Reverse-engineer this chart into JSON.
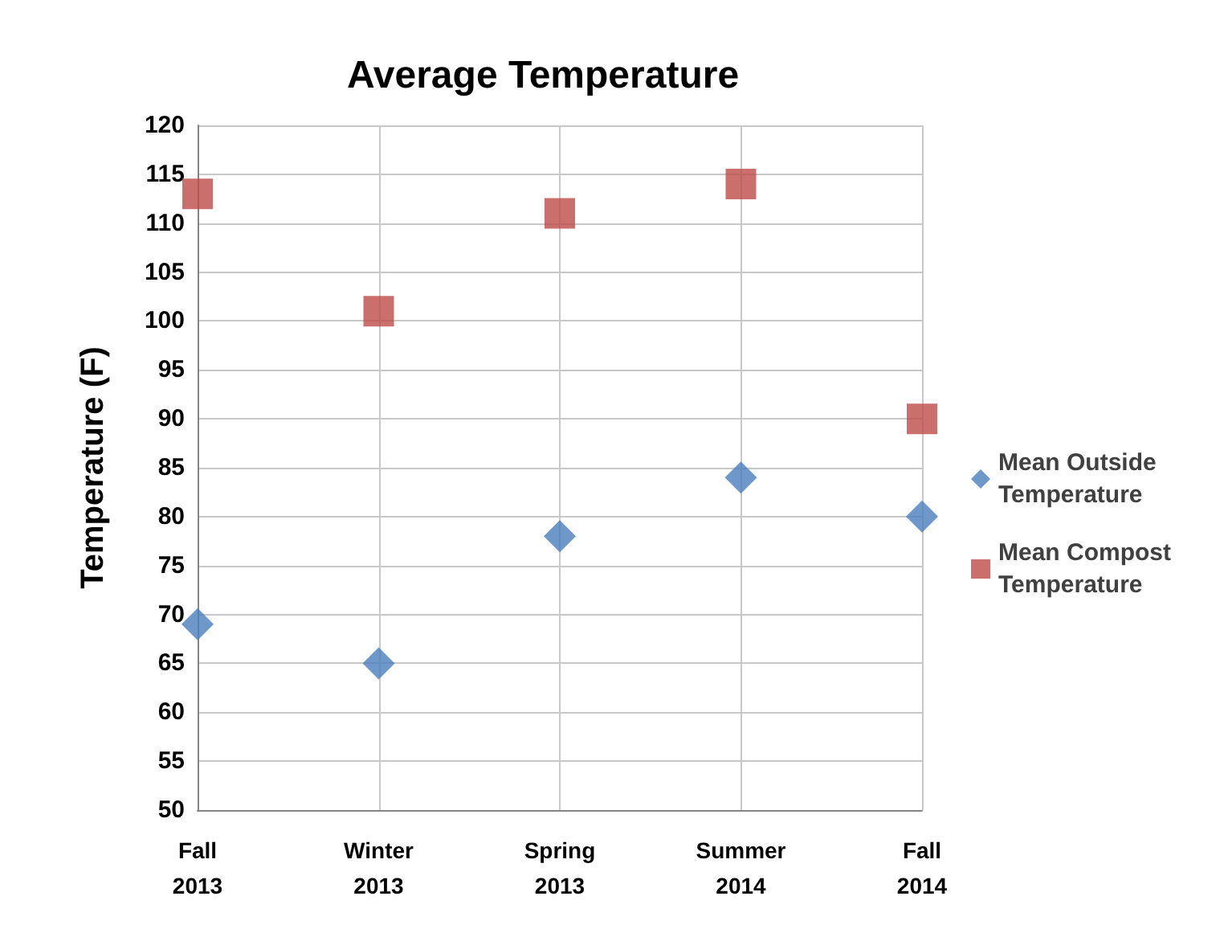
{
  "chart_data": {
    "type": "scatter",
    "title": "Average Temperature",
    "ylabel": "Temperature (F)",
    "categories": [
      "Fall 2013",
      "Winter 2013",
      "Spring 2013",
      "Summer 2014",
      "Fall 2014"
    ],
    "series": [
      {
        "name": "Mean Outside Temperature",
        "color": "#4a7ebb",
        "marker": "diamond",
        "values": [
          69,
          65,
          78,
          84,
          80
        ]
      },
      {
        "name": "Mean Compost Temperature",
        "color": "#be4b48",
        "marker": "square",
        "values": [
          113,
          101,
          111,
          114,
          90
        ]
      }
    ],
    "ylim": [
      50,
      120
    ],
    "yticks": [
      50,
      55,
      60,
      65,
      70,
      75,
      80,
      85,
      90,
      95,
      100,
      105,
      110,
      115,
      120
    ],
    "grid": true,
    "legend": "right"
  }
}
